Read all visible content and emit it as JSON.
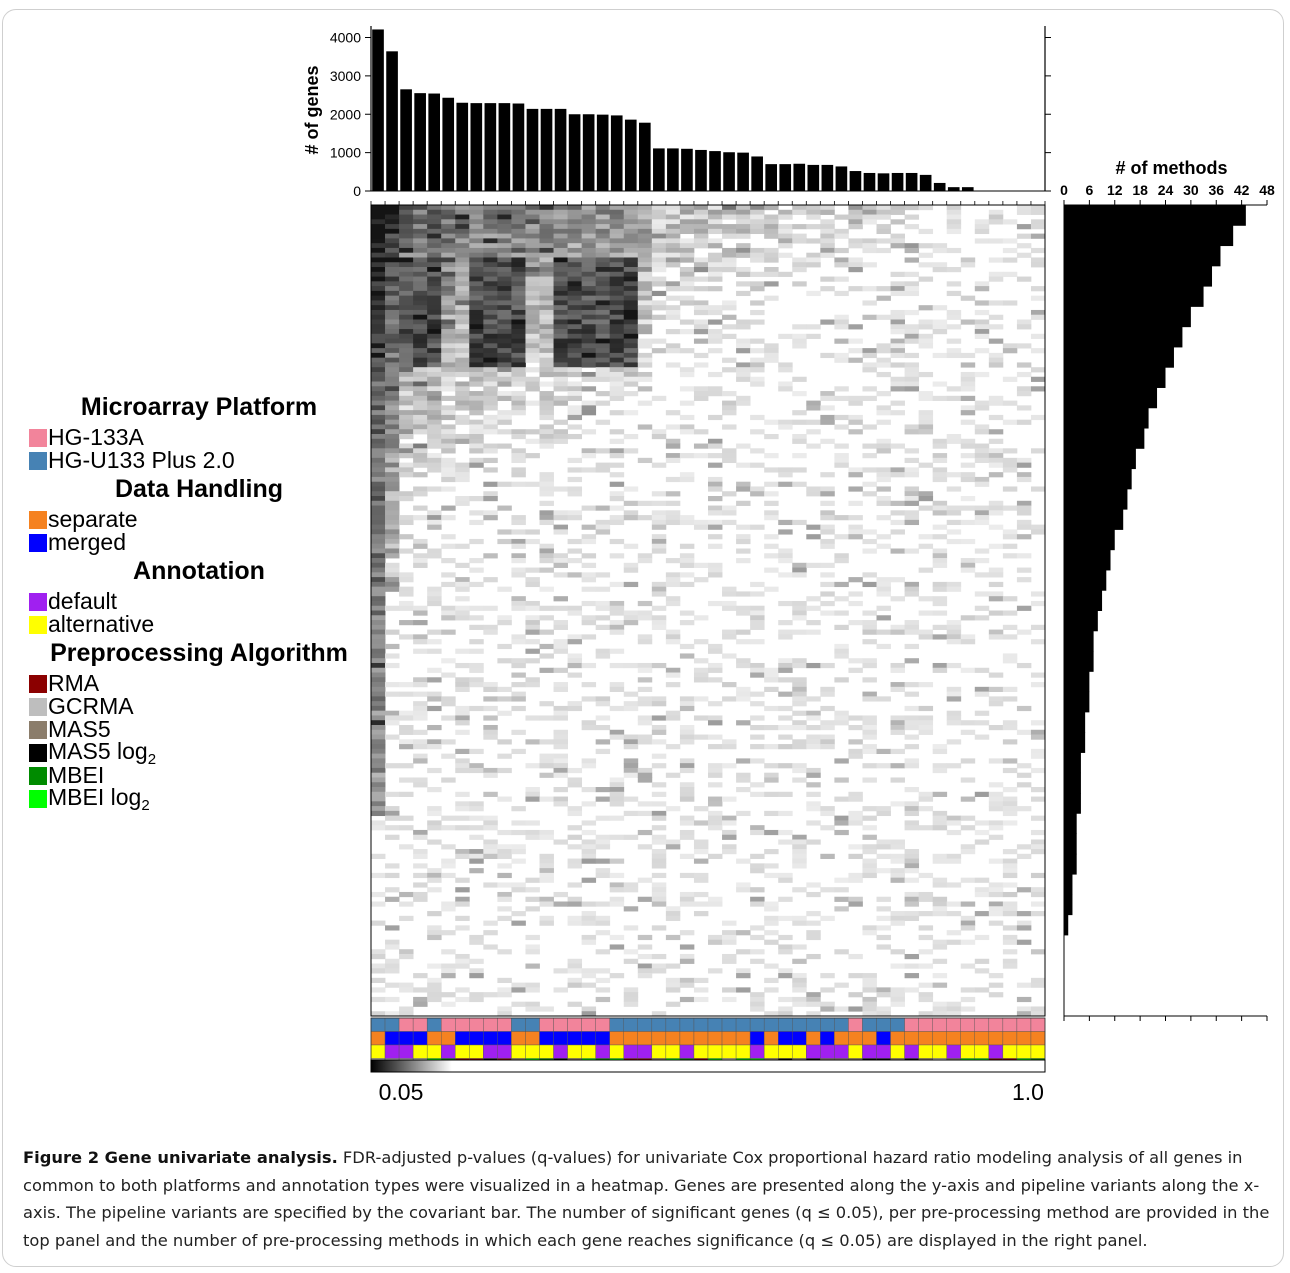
{
  "figure": {
    "caption_label": "Figure 2 Gene univariate analysis.",
    "caption_text": " FDR-adjusted p-values (q-values) for univariate Cox proportional hazard ratio modeling analysis of all genes in common to both platforms and annotation types were visualized in a heatmap. Genes are presented along the y-axis and pipeline variants along the x-axis. The pipeline variants are specified by the covariant bar. The number of significant genes (q ≤ 0.05), per pre-processing method are provided in the top panel and the number of pre-processing methods in which each gene reaches significance (q ≤ 0.05) are displayed in the right panel."
  },
  "legend": {
    "groups": [
      {
        "title": "Microarray Platform",
        "items": [
          {
            "label": "HG-133A",
            "color": "#f2849b"
          },
          {
            "label": "HG-U133 Plus 2.0",
            "color": "#4682b4"
          }
        ]
      },
      {
        "title": "Data Handling",
        "items": [
          {
            "label": "separate",
            "color": "#f58220"
          },
          {
            "label": "merged",
            "color": "#0000ff"
          }
        ]
      },
      {
        "title": "Annotation",
        "items": [
          {
            "label": "default",
            "color": "#a020f0"
          },
          {
            "label": "alternative",
            "color": "#ffff00"
          }
        ]
      },
      {
        "title": "Preprocessing Algorithm",
        "items": [
          {
            "label": "RMA",
            "color": "#8b0000"
          },
          {
            "label": "GCRMA",
            "color": "#bebebe"
          },
          {
            "label": "MAS5",
            "color": "#8b7d6b"
          },
          {
            "label": "MAS5 log",
            "sub": "2",
            "color": "#000000"
          },
          {
            "label": "MBEI",
            "color": "#008b00"
          },
          {
            "label": "MBEI log",
            "sub": "2",
            "color": "#00ff00"
          }
        ]
      }
    ]
  },
  "chart_data": [
    {
      "type": "bar",
      "panel": "top",
      "ylabel": "# of genes",
      "ylim": [
        0,
        4300
      ],
      "yticks": [
        0,
        1000,
        2000,
        3000,
        4000
      ],
      "values": [
        4210,
        3640,
        2650,
        2550,
        2540,
        2430,
        2300,
        2290,
        2290,
        2290,
        2280,
        2140,
        2140,
        2140,
        2000,
        2000,
        1990,
        1970,
        1860,
        1780,
        1110,
        1110,
        1100,
        1070,
        1040,
        1010,
        1000,
        900,
        700,
        700,
        710,
        680,
        680,
        640,
        520,
        470,
        460,
        470,
        470,
        420,
        210,
        100,
        100,
        0,
        0,
        0,
        0,
        0
      ]
    },
    {
      "type": "bar",
      "panel": "right",
      "orientation": "horizontal",
      "xlabel": "# of methods",
      "xlim": [
        0,
        48
      ],
      "xticks": [
        0,
        6,
        12,
        18,
        24,
        30,
        36,
        42,
        48
      ],
      "values_top_to_bottom": [
        43,
        40,
        37,
        35,
        33,
        30,
        28,
        26,
        24,
        22,
        20,
        19,
        17,
        16,
        15,
        14,
        12,
        11,
        10,
        9,
        8,
        7,
        7,
        6,
        6,
        5,
        5,
        4,
        4,
        4,
        3,
        3,
        3,
        2,
        2,
        1,
        0,
        0,
        0,
        0
      ]
    },
    {
      "type": "heatmap",
      "panel": "main",
      "colorbar_min": "0.05",
      "colorbar_max": "1.0",
      "columns": 48
    }
  ],
  "covariates": {
    "platform": [
      "b",
      "b",
      "p",
      "p",
      "b",
      "p",
      "p",
      "p",
      "p",
      "p",
      "b",
      "b",
      "p",
      "p",
      "p",
      "p",
      "p",
      "b",
      "b",
      "b",
      "b",
      "b",
      "b",
      "b",
      "b",
      "b",
      "b",
      "b",
      "b",
      "b",
      "b",
      "b",
      "b",
      "b",
      "p",
      "b",
      "b",
      "b",
      "p",
      "p",
      "p",
      "p",
      "p",
      "p",
      "p",
      "p",
      "p",
      "p"
    ],
    "handling": [
      "o",
      "b",
      "b",
      "b",
      "o",
      "o",
      "b",
      "b",
      "b",
      "b",
      "o",
      "o",
      "b",
      "b",
      "b",
      "b",
      "b",
      "o",
      "o",
      "o",
      "o",
      "o",
      "o",
      "o",
      "o",
      "o",
      "o",
      "b",
      "o",
      "b",
      "b",
      "o",
      "b",
      "o",
      "o",
      "o",
      "b",
      "o",
      "o",
      "o",
      "o",
      "o",
      "o",
      "o",
      "o",
      "o",
      "o",
      "o"
    ],
    "annotation": [
      "y",
      "p",
      "p",
      "y",
      "y",
      "p",
      "y",
      "y",
      "p",
      "p",
      "y",
      "y",
      "y",
      "p",
      "y",
      "y",
      "p",
      "y",
      "p",
      "p",
      "y",
      "y",
      "p",
      "y",
      "y",
      "y",
      "y",
      "p",
      "y",
      "y",
      "y",
      "p",
      "p",
      "p",
      "y",
      "p",
      "p",
      "y",
      "p",
      "y",
      "y",
      "p",
      "y",
      "y",
      "p",
      "y",
      "y",
      "y"
    ],
    "algorithm": [
      "g",
      "g",
      "g",
      "g",
      "l",
      "d",
      "r",
      "r",
      "k",
      "r",
      "t",
      "l",
      "d",
      "k",
      "t",
      "l",
      "d",
      "l",
      "r",
      "r",
      "t",
      "l",
      "d",
      "r",
      "l",
      "g",
      "l",
      "l",
      "t",
      "k",
      "t",
      "k",
      "t",
      "t",
      "t",
      "k",
      "k",
      "t",
      "k",
      "t",
      "g",
      "t",
      "l",
      "l",
      "r",
      "r",
      "l",
      "d"
    ]
  }
}
